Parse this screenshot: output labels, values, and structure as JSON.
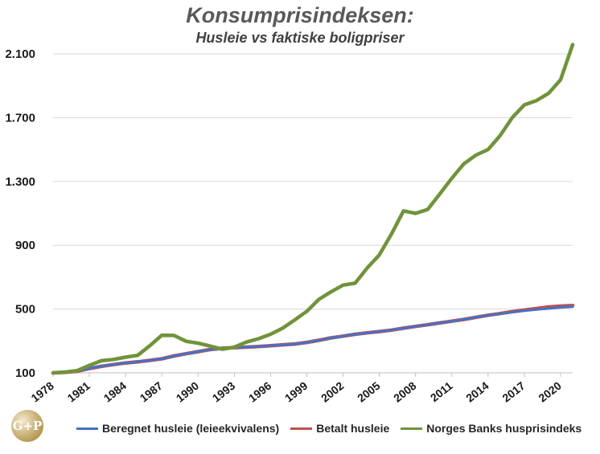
{
  "chart_data": {
    "type": "line",
    "title": "Konsumprisindeksen:",
    "subtitle": "Husleie vs faktiske boligpriser",
    "ylim": [
      100,
      2200
    ],
    "yticks": [
      100,
      500,
      900,
      1300,
      1700,
      2100
    ],
    "ytick_labels": [
      "100",
      "500",
      "900",
      "1.300",
      "1.700",
      "2.100"
    ],
    "xlim": [
      1978,
      2021
    ],
    "xticks": [
      1978,
      1981,
      1984,
      1987,
      1990,
      1993,
      1996,
      1999,
      2002,
      2005,
      2008,
      2011,
      2014,
      2017,
      2020
    ],
    "grid": "horizontal",
    "legend_position": "bottom",
    "x": [
      1978,
      1979,
      1980,
      1981,
      1982,
      1983,
      1984,
      1985,
      1986,
      1987,
      1988,
      1989,
      1990,
      1991,
      1992,
      1993,
      1994,
      1995,
      1996,
      1997,
      1998,
      1999,
      2000,
      2001,
      2002,
      2003,
      2004,
      2005,
      2006,
      2007,
      2008,
      2009,
      2010,
      2011,
      2012,
      2013,
      2014,
      2015,
      2016,
      2017,
      2018,
      2019,
      2020,
      2021
    ],
    "series": [
      {
        "name": "Beregnet husleie (leieekvivalens)",
        "color": "#4472c4",
        "values": [
          100,
          105,
          112,
          128,
          142,
          153,
          162,
          169,
          178,
          188,
          206,
          220,
          233,
          246,
          254,
          258,
          261,
          265,
          270,
          276,
          281,
          291,
          304,
          319,
          330,
          342,
          351,
          359,
          368,
          380,
          391,
          402,
          413,
          424,
          435,
          448,
          461,
          470,
          480,
          489,
          497,
          503,
          510,
          514
        ]
      },
      {
        "name": "Betalt husleie",
        "color": "#c0504d",
        "values": [
          100,
          103,
          110,
          127,
          141,
          152,
          162,
          169,
          178,
          188,
          206,
          220,
          233,
          246,
          254,
          258,
          261,
          265,
          270,
          276,
          281,
          291,
          304,
          319,
          330,
          342,
          351,
          359,
          368,
          380,
          391,
          402,
          413,
          424,
          435,
          448,
          461,
          472,
          484,
          494,
          503,
          513,
          518,
          522
        ]
      },
      {
        "name": "Norges Banks husprisindeks",
        "color": "#70933a",
        "values": [
          100,
          105,
          114,
          147,
          176,
          184,
          198,
          210,
          270,
          336,
          335,
          298,
          286,
          268,
          248,
          261,
          293,
          314,
          342,
          380,
          432,
          486,
          561,
          608,
          650,
          662,
          758,
          839,
          970,
          1115,
          1100,
          1124,
          1221,
          1320,
          1411,
          1465,
          1500,
          1588,
          1700,
          1780,
          1807,
          1852,
          1938,
          2158
        ]
      }
    ]
  },
  "legend": {
    "items": [
      {
        "label": "Beregnet husleie (leieekvivalens)",
        "color": "#4472c4"
      },
      {
        "label": "Betalt husleie",
        "color": "#c0504d"
      },
      {
        "label": "Norges Banks husprisindeks",
        "color": "#70933a"
      }
    ]
  },
  "logo": {
    "text": "G+P"
  }
}
